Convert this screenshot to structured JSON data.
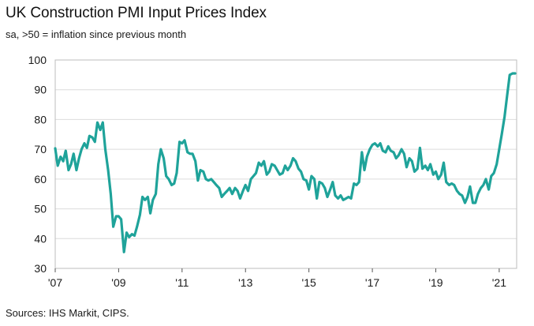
{
  "chart_data": {
    "type": "line",
    "title": "UK Construction PMI Input Prices Index",
    "subtitle": "sa, >50 = inflation since previous month",
    "source": "Sources: IHS Markit, CIPS.",
    "ylim": [
      30,
      100
    ],
    "yticks": [
      30,
      40,
      50,
      60,
      70,
      80,
      90,
      100
    ],
    "xlim": [
      2007.0,
      2021.55
    ],
    "xticks": [
      {
        "value": 2007,
        "label": "'07"
      },
      {
        "value": 2009,
        "label": "'09"
      },
      {
        "value": 2011,
        "label": "'11"
      },
      {
        "value": 2013,
        "label": "'13"
      },
      {
        "value": 2015,
        "label": "'15"
      },
      {
        "value": 2017,
        "label": "'17"
      },
      {
        "value": 2019,
        "label": "'19"
      },
      {
        "value": 2021,
        "label": "'21"
      }
    ],
    "grid": true,
    "line_color": "#1fa39a",
    "series": [
      {
        "x": [
          2007.0,
          2007.08,
          2007.17,
          2007.25,
          2007.33,
          2007.42,
          2007.5,
          2007.58,
          2007.67,
          2007.75,
          2007.83,
          2007.92,
          2008.0,
          2008.08,
          2008.17,
          2008.25,
          2008.33,
          2008.42,
          2008.5,
          2008.58,
          2008.67,
          2008.75,
          2008.83,
          2008.92,
          2009.0,
          2009.08,
          2009.17,
          2009.25,
          2009.33,
          2009.42,
          2009.5,
          2009.58,
          2009.67,
          2009.75,
          2009.83,
          2009.92,
          2010.0,
          2010.08,
          2010.17,
          2010.25,
          2010.33,
          2010.42,
          2010.5,
          2010.58,
          2010.67,
          2010.75,
          2010.83,
          2010.92,
          2011.0,
          2011.08,
          2011.17,
          2011.25,
          2011.33,
          2011.42,
          2011.5,
          2011.58,
          2011.67,
          2011.75,
          2011.83,
          2011.92,
          2012.0,
          2012.08,
          2012.17,
          2012.25,
          2012.33,
          2012.42,
          2012.5,
          2012.58,
          2012.67,
          2012.75,
          2012.83,
          2012.92,
          2013.0,
          2013.08,
          2013.17,
          2013.25,
          2013.33,
          2013.42,
          2013.5,
          2013.58,
          2013.67,
          2013.75,
          2013.83,
          2013.92,
          2014.0,
          2014.08,
          2014.17,
          2014.25,
          2014.33,
          2014.42,
          2014.5,
          2014.58,
          2014.67,
          2014.75,
          2014.83,
          2014.92,
          2015.0,
          2015.08,
          2015.17,
          2015.25,
          2015.33,
          2015.42,
          2015.5,
          2015.58,
          2015.67,
          2015.75,
          2015.83,
          2015.92,
          2016.0,
          2016.08,
          2016.17,
          2016.25,
          2016.33,
          2016.42,
          2016.5,
          2016.58,
          2016.67,
          2016.75,
          2016.83,
          2016.92,
          2017.0,
          2017.08,
          2017.17,
          2017.25,
          2017.33,
          2017.42,
          2017.5,
          2017.58,
          2017.67,
          2017.75,
          2017.83,
          2017.92,
          2018.0,
          2018.08,
          2018.17,
          2018.25,
          2018.33,
          2018.42,
          2018.5,
          2018.58,
          2018.67,
          2018.75,
          2018.83,
          2018.92,
          2019.0,
          2019.08,
          2019.17,
          2019.25,
          2019.33,
          2019.42,
          2019.5,
          2019.58,
          2019.67,
          2019.75,
          2019.83,
          2019.92,
          2020.0,
          2020.08,
          2020.17,
          2020.25,
          2020.33,
          2020.42,
          2020.5,
          2020.58,
          2020.67,
          2020.75,
          2020.83,
          2020.92,
          2021.0,
          2021.08,
          2021.17,
          2021.25,
          2021.33,
          2021.42,
          2021.5
        ],
        "y": [
          70.3,
          64.5,
          67.5,
          66.0,
          69.5,
          63.0,
          65.0,
          68.5,
          63.0,
          67.0,
          70.0,
          72.0,
          70.5,
          74.5,
          74.0,
          72.5,
          79.0,
          76.5,
          79.0,
          70.0,
          63.0,
          55.0,
          44.0,
          47.5,
          47.5,
          46.5,
          35.5,
          42.0,
          40.5,
          41.5,
          41.0,
          44.0,
          48.0,
          54.0,
          53.0,
          54.0,
          48.5,
          53.0,
          55.0,
          65.0,
          70.0,
          67.0,
          61.0,
          60.0,
          58.0,
          58.5,
          62.0,
          72.5,
          72.0,
          73.0,
          69.0,
          68.5,
          68.5,
          66.0,
          59.5,
          63.0,
          62.5,
          60.0,
          59.5,
          60.0,
          59.0,
          58.0,
          57.0,
          54.0,
          55.0,
          56.0,
          57.0,
          55.0,
          57.0,
          56.0,
          53.5,
          56.0,
          58.0,
          56.0,
          60.0,
          61.0,
          62.0,
          65.5,
          64.5,
          66.0,
          61.5,
          62.5,
          65.0,
          64.5,
          63.0,
          61.5,
          62.0,
          64.5,
          63.0,
          64.5,
          67.0,
          66.0,
          63.5,
          62.5,
          60.0,
          59.5,
          56.5,
          61.0,
          60.0,
          53.5,
          59.0,
          58.5,
          57.0,
          54.0,
          56.5,
          59.0,
          54.5,
          53.5,
          54.5,
          53.0,
          53.5,
          54.0,
          53.5,
          58.5,
          58.0,
          59.0,
          69.0,
          63.0,
          67.5,
          70.0,
          71.5,
          72.0,
          71.0,
          72.0,
          69.5,
          69.0,
          71.0,
          69.5,
          69.0,
          67.0,
          68.0,
          70.0,
          68.5,
          64.0,
          67.0,
          66.0,
          62.5,
          63.5,
          70.5,
          63.5,
          64.5,
          63.0,
          65.0,
          61.5,
          62.5,
          60.0,
          61.5,
          65.5,
          59.0,
          58.0,
          58.5,
          58.0,
          56.0,
          55.0,
          54.5,
          52.0,
          54.0,
          57.5,
          52.0,
          52.0,
          55.0,
          57.0,
          58.0,
          60.0,
          56.5,
          61.0,
          62.0,
          65.0,
          70.0,
          75.0,
          81.0,
          88.0,
          95.0,
          95.5,
          95.5
        ]
      }
    ]
  }
}
